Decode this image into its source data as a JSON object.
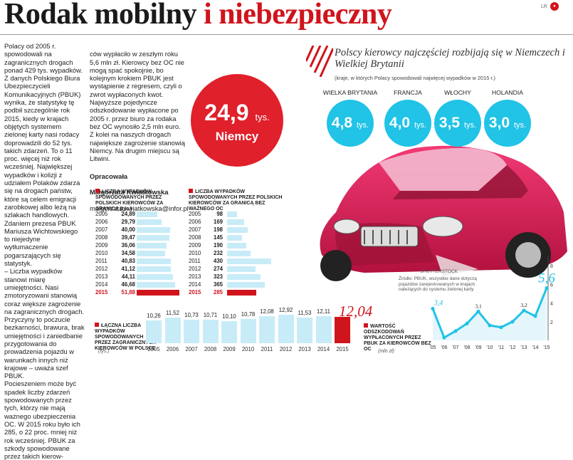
{
  "header": {
    "title_dark": "Rodak mobilny",
    "title_red": "i niebezpieczny",
    "corner_label": "LR",
    "corner_icon": "logo-dot-icon"
  },
  "article": {
    "col1": "Polacy od 2005 r. spowodowali na zagranicznych drogach ponad 429 tys. wypadków. Z danych Polskiego Biura Ubezpieczycieli Komunikacyjnych (PBUK) wynika, że statystykę tę podbił szczególnie rok 2015, kiedy w krajach objętych systemem zielonej karty nasi rodacy doprowadzili do 52 tys. takich zdarzeń. To o 11 proc. więcej niż rok wcześniej. Największej wypadków i kolizji z udziałem Polaków zdarza się na drogach państw, które są celem emigracji zarobkowej albo leżą na szlakach handlowych. Zdaniem prezesa PBUK Mariusza Wichtowskiego to niejedyne wytłumaczenie pogarszających się statystyk.\n– Liczba wypadków stanowi miarę umiejętności. Nasi zmotoryzowani stanowią coraz większe zagrożenie na zagranicznych drogach. Przyczyny to poczucie bezkarności, brawura, brak umiejętności i zaniedbanie przygotowania do prowadzenia pojazdu w warunkach innych niż krajowe – uważa szef PBUK.\nPocieszeniem może być spadek liczby zdarzeń spowodowanych przez tych, którzy nie mają ważnego ubezpieczenia OC. W 2015 roku było ich 285, o 22 proc. mniej niż rok wcześniej. PBUK za szkody spowodowane przez takich kierow-",
    "col2": "ców wypłaciło w zeszłym roku 5,6 mln zł. Kierowcy bez OC nie mogą spać spokojnie, bo kolejnym krokiem PBUK jest wystąpienie z regresem, czyli o zwrot wypłaconych kwot. Najwyższe pojedyncze odszkodowanie wypłacone po 2005 r. przez biuro za rodaka bez OC wynosiło 2,5 mln euro.\nZ kolei na naszych drogach największe zagrożenie stanowią Niemcy. Na drugim miejscu są Litwini.",
    "byline_label": "Opracowała",
    "byline_name": "Małgorzata Kwiatkowska",
    "byline_email": "malgorzata.kwiatkowska@infor.pl"
  },
  "highlight": {
    "value": "24,9",
    "unit": "tys.",
    "country": "Niemcy"
  },
  "countries_panel": {
    "title": "Polscy kierowcy najczęściej rozbijają się w Niemczech i Wielkiej Brytanii",
    "note": "(kraje, w których Polacy spowodowali najwięcej wypadków w 2015 r.)",
    "items": [
      {
        "name": "WIELKA BRYTANIA",
        "value": "4,8",
        "unit": "tys."
      },
      {
        "name": "FRANCJA",
        "value": "4,0",
        "unit": "tys."
      },
      {
        "name": "WŁOCHY",
        "value": "3,5",
        "unit": "tys."
      },
      {
        "name": "HOLANDIA",
        "value": "3,0",
        "unit": "tys."
      }
    ],
    "accent": "#21c3e6"
  },
  "photo": {
    "credit": "SHUTTERSTOCK",
    "source": "Źródło: PBUK, wszystkie dane dotyczą pojazdów zarejestrowanych w krajach należących do systemu zielonej karty"
  },
  "chart_data": [
    {
      "type": "bar",
      "orientation": "horizontal",
      "title": "LICZBA WYPADKÓW SPOWODOWANYCH PRZEZ POLSKICH KIEROWCÓW ZA GRANICĄ (tys.)",
      "categories": [
        "2005",
        "2006",
        "2007",
        "2008",
        "2009",
        "2010",
        "2011",
        "2012",
        "2013",
        "2014",
        "2015"
      ],
      "values": [
        24.89,
        29.79,
        40.0,
        39.47,
        36.06,
        34.58,
        40.83,
        41.12,
        44.11,
        46.68,
        51.88
      ],
      "labels": [
        "24,89",
        "29,79",
        "40,00",
        "39,47",
        "36,06",
        "34,58",
        "40,83",
        "41,12",
        "44,11",
        "46,68",
        "51,88"
      ],
      "colors": {
        "bar": "#c8ecf7",
        "highlight": "#d0141c"
      }
    },
    {
      "type": "bar",
      "orientation": "horizontal",
      "title": "LICZBA WYPADKÓW SPOWODOWANYCH PRZEZ POLSKICH KIEROWCÓW ZA GRANICĄ BEZ WAŻNEGO OC",
      "categories": [
        "2005",
        "2006",
        "2007",
        "2008",
        "2009",
        "2010",
        "2011",
        "2012",
        "2013",
        "2014",
        "2015"
      ],
      "values": [
        98,
        169,
        198,
        145,
        190,
        232,
        430,
        274,
        323,
        365,
        285
      ],
      "labels": [
        "98",
        "169",
        "198",
        "145",
        "190",
        "232",
        "430",
        "274",
        "323",
        "365",
        "285"
      ]
    },
    {
      "type": "bar",
      "orientation": "vertical",
      "title": "ŁĄCZNA LICZBA WYPADKÓW SPOWODOWANYCH PRZEZ ZAGRANICZNYCH KIEROWCÓW W POLSCE",
      "unit": "(tys.)",
      "categories": [
        "2005",
        "2006",
        "2007",
        "2008",
        "2009",
        "2010",
        "2011",
        "2012",
        "2013",
        "2014",
        "2015"
      ],
      "values": [
        10.26,
        11.52,
        10.73,
        10.71,
        10.1,
        10.78,
        12.08,
        12.92,
        11.53,
        12.11,
        12.04
      ],
      "labels": [
        "10,26",
        "11,52",
        "10,73",
        "10,71",
        "10,10",
        "10,78",
        "12,08",
        "12,92",
        "11,53",
        "12,11",
        "12,04"
      ]
    },
    {
      "type": "line",
      "title": "WARTOŚĆ ODSZKODOWAŃ WYPŁACONYCH PRZEZ PBUK ZA KIEROWCÓW BEZ OC",
      "unit": "(mln zł)",
      "categories": [
        "'05",
        "'06",
        "'07",
        "'08",
        "'09",
        "'10",
        "'11",
        "'12",
        "'13",
        "'14",
        "'15"
      ],
      "values": [
        3.4,
        0.3,
        1.0,
        1.8,
        3.1,
        1.6,
        1.4,
        2.0,
        3.2,
        2.6,
        5.6
      ],
      "labels": {
        "0": "3,4",
        "4": "3,1",
        "8": "3,2",
        "10": "5,6"
      },
      "yticks": [
        "2",
        "4",
        "6",
        "8"
      ],
      "ylim": [
        0,
        9
      ]
    }
  ]
}
